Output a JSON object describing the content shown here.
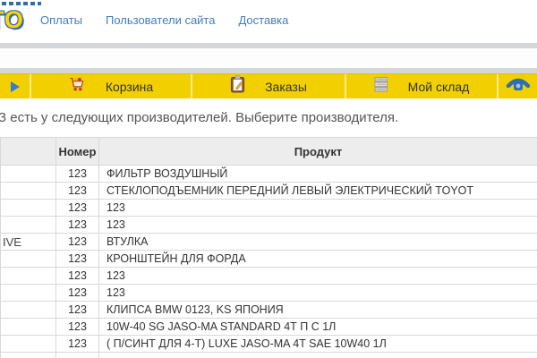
{
  "header": {
    "logo_text": "ТО",
    "nav": [
      {
        "label": "Оплаты"
      },
      {
        "label": "Пользователи сайта"
      },
      {
        "label": "Доставка"
      }
    ]
  },
  "toolbar": {
    "cart_label": "Корзина",
    "orders_label": "Заказы",
    "stock_label": "Мой склад",
    "icons": [
      "play-icon",
      "cart-icon",
      "clipboard-icon",
      "warehouse-icon",
      "phone-icon"
    ]
  },
  "heading": "З есть у следующих производителей. Выберите производителя.",
  "table": {
    "columns": {
      "manufacturer": "",
      "number": "Номер",
      "product": "Продукт"
    },
    "rows": [
      {
        "manufacturer": "",
        "number": "123",
        "product": "ФИЛЬТР ВОЗДУШНЫЙ"
      },
      {
        "manufacturer": "",
        "number": "123",
        "product": "СТЕКЛОПОДЪЕМНИК ПЕРЕДНИЙ ЛЕВЫЙ ЭЛЕКТРИЧЕСКИЙ TOYOT"
      },
      {
        "manufacturer": "",
        "number": "123",
        "product": "123"
      },
      {
        "manufacturer": "",
        "number": "123",
        "product": "123"
      },
      {
        "manufacturer": "IVE",
        "number": "123",
        "product": "ВТУЛКА"
      },
      {
        "manufacturer": "",
        "number": "123",
        "product": "КРОНШТЕЙН ДЛЯ ФОРДА"
      },
      {
        "manufacturer": "",
        "number": "123",
        "product": "123"
      },
      {
        "manufacturer": "",
        "number": "123",
        "product": "123"
      },
      {
        "manufacturer": "",
        "number": "123",
        "product": "КЛИПСА BMW 0123, KS ЯПОНИЯ"
      },
      {
        "manufacturer": "",
        "number": "123",
        "product": "10W-40 SG JASO-MA STANDARD 4Т П С 1Л"
      },
      {
        "manufacturer": "",
        "number": "123",
        "product": "( П/СИНТ ДЛЯ 4-Т) LUXE JASO-MA 4T SAE 10W40 1Л"
      }
    ]
  },
  "colors": {
    "toolbar_yellow": "#f2d000",
    "toolbar_divider": "#f8ea8c",
    "link_blue": "#3f7ec1",
    "band_gray": "#d3d7d9",
    "logo_yellow": "#ffd200",
    "logo_outline_blue": "#2e6db4",
    "table_border": "#d8d8d8",
    "header_row_bg": "#ededed"
  }
}
